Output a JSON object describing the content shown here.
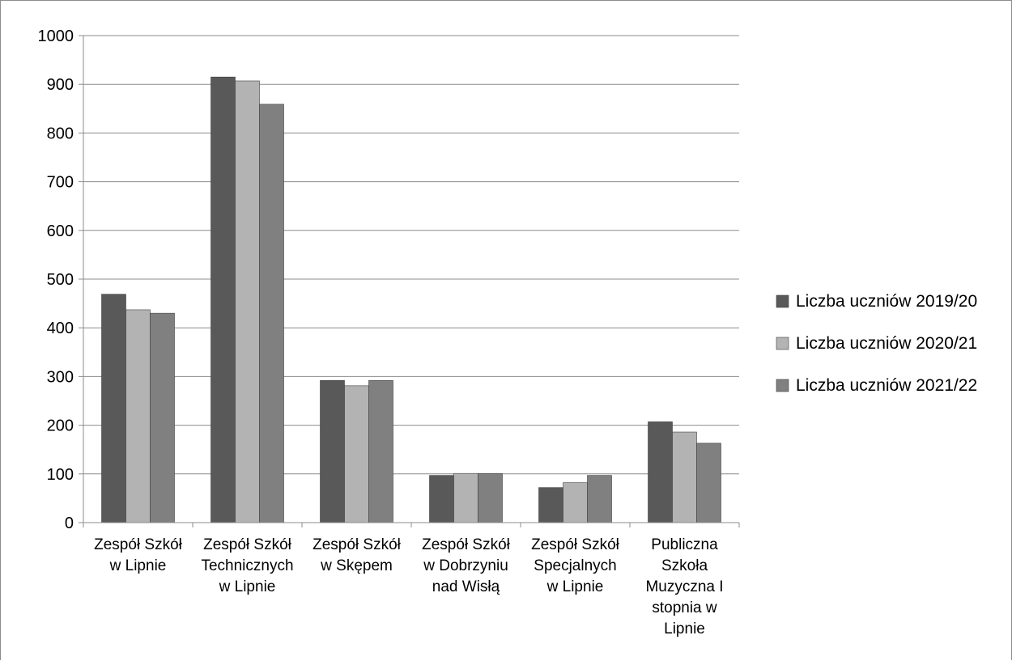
{
  "chart_data": {
    "type": "bar",
    "title": "",
    "xlabel": "",
    "ylabel": "",
    "ylim": [
      0,
      1000
    ],
    "yticks": [
      0,
      100,
      200,
      300,
      400,
      500,
      600,
      700,
      800,
      900,
      1000
    ],
    "grid": true,
    "legend_position": "right",
    "categories": [
      [
        "Zespół Szkół",
        "w Lipnie"
      ],
      [
        "Zespół Szkół",
        "Technicznych",
        "w Lipnie"
      ],
      [
        "Zespół Szkół",
        "w Skępem"
      ],
      [
        "Zespół Szkół",
        "w Dobrzyniu",
        "nad Wisłą"
      ],
      [
        "Zespół Szkół",
        "Specjalnych",
        "w Lipnie"
      ],
      [
        "Publiczna",
        "Szkoła",
        "Muzyczna I",
        "stopnia w",
        "Lipnie"
      ]
    ],
    "series": [
      {
        "name": "Liczba uczniów 2019/20",
        "color": "#595959",
        "values": [
          469,
          915,
          292,
          97,
          72,
          207
        ]
      },
      {
        "name": "Liczba uczniów 2020/21",
        "color": "#b3b3b3",
        "values": [
          437,
          907,
          281,
          101,
          82,
          186
        ]
      },
      {
        "name": "Liczba uczniów 2021/22",
        "color": "#808080",
        "values": [
          430,
          859,
          292,
          101,
          97,
          163
        ]
      }
    ]
  }
}
